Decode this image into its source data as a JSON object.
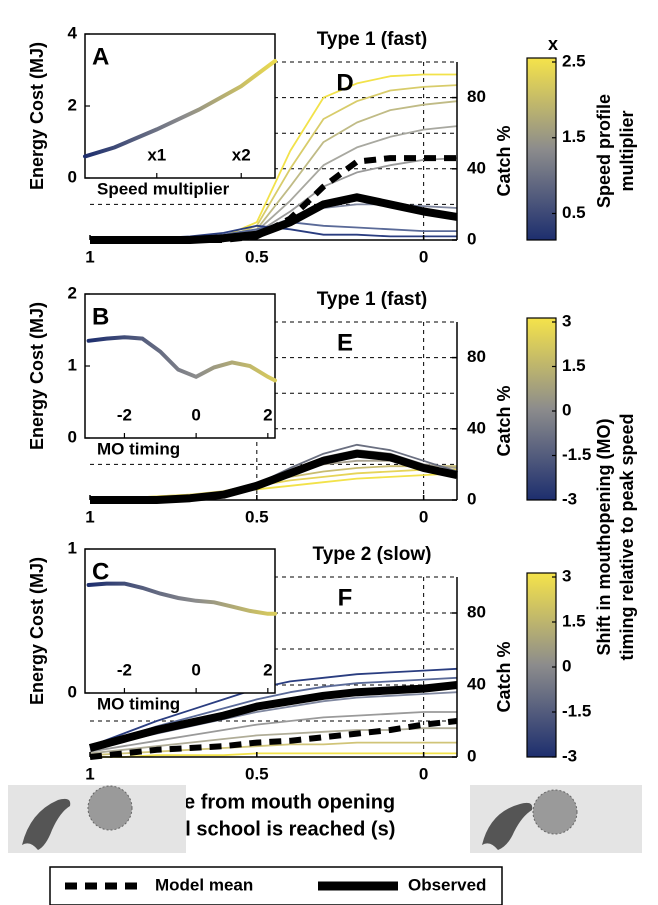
{
  "chart_data": [
    {
      "type": "line",
      "title": "Type 1 (fast)",
      "panel_label": "D",
      "ylabel": "Catch %",
      "x": [
        1,
        0.9,
        0.8,
        0.7,
        0.6,
        0.5,
        0.4,
        0.3,
        0.2,
        0.1,
        0,
        -0.1
      ],
      "xlim": [
        1,
        -0.1
      ],
      "xticks": [
        1,
        0.5,
        0
      ],
      "xgrid": [
        0
      ],
      "ylim": [
        0,
        100
      ],
      "yticks": [
        0,
        40,
        80
      ],
      "ygrid": [
        20,
        40,
        60,
        80,
        100
      ],
      "series": [
        {
          "color": "#f2e24a",
          "values": [
            0,
            0,
            0,
            0,
            2,
            10,
            50,
            80,
            88,
            92,
            93,
            93
          ]
        },
        {
          "color": "#d8cc6a",
          "values": [
            0,
            0,
            0,
            0,
            1,
            8,
            40,
            68,
            78,
            84,
            86,
            87
          ]
        },
        {
          "color": "#c0bb86",
          "values": [
            0,
            0,
            0,
            0,
            1,
            6,
            30,
            55,
            66,
            73,
            76,
            78
          ]
        },
        {
          "color": "#a8a8a0",
          "values": [
            0,
            0,
            0,
            0,
            1,
            5,
            22,
            42,
            52,
            58,
            62,
            64
          ]
        },
        {
          "color": "#9a9a9a",
          "values": [
            0,
            0,
            0,
            0,
            1,
            4,
            16,
            30,
            38,
            42,
            45,
            46
          ]
        },
        {
          "color": "#8088a0",
          "values": [
            0,
            0,
            0,
            1,
            2,
            5,
            12,
            18,
            20,
            20,
            19,
            18
          ]
        },
        {
          "color": "#5a6a98",
          "values": [
            0,
            0,
            0,
            1,
            3,
            6,
            10,
            8,
            7,
            6,
            5,
            5
          ]
        },
        {
          "color": "#2a3d80",
          "values": [
            0,
            0,
            1,
            2,
            4,
            8,
            6,
            3,
            3,
            2,
            2,
            2
          ]
        },
        {
          "color": "#000000",
          "width": 8,
          "values": [
            0,
            0,
            0,
            0,
            1,
            3,
            10,
            20,
            24,
            20,
            16,
            13
          ]
        },
        {
          "color": "#000000",
          "width": 6,
          "dash": true,
          "values": [
            0,
            0,
            0,
            0,
            0,
            2,
            12,
            30,
            44,
            46,
            46,
            46
          ]
        }
      ],
      "inset": {
        "panel_label": "A",
        "xlabel": "Speed multiplier",
        "ylabel": "Energy Cost (MJ)",
        "x": [
          0.15,
          0.5,
          1,
          1.5,
          2,
          2.4
        ],
        "values": [
          0.6,
          0.85,
          1.35,
          1.9,
          2.55,
          3.25
        ],
        "xlim": [
          0.15,
          2.4
        ],
        "xticks": [
          {
            "value": 1,
            "label": "x1"
          },
          {
            "value": 2,
            "label": "x2"
          }
        ],
        "ylim": [
          0,
          4
        ],
        "yticks": [
          0,
          2,
          4
        ]
      },
      "colorbar": {
        "title": "x",
        "label": [
          "Speed profile",
          "multiplier"
        ],
        "clim": [
          0.15,
          2.5
        ],
        "ticks": [
          0.5,
          1.5,
          2.5
        ],
        "colormap": [
          "#1d2e6e",
          "#8c8c8c",
          "#f5e34a"
        ]
      }
    },
    {
      "type": "line",
      "title": "Type 1 (fast)",
      "panel_label": "E",
      "ylabel": "Catch %",
      "x": [
        1,
        0.9,
        0.8,
        0.7,
        0.6,
        0.5,
        0.4,
        0.3,
        0.2,
        0.1,
        0,
        -0.1
      ],
      "xlim": [
        1,
        -0.1
      ],
      "xticks": [
        1,
        0.5,
        0
      ],
      "xgrid": [
        0.5,
        0
      ],
      "ylim": [
        0,
        100
      ],
      "yticks": [
        0,
        40,
        80
      ],
      "ygrid": [
        20,
        40,
        60,
        80,
        100
      ],
      "series": [
        {
          "color": "#f2e24a",
          "values": [
            0,
            1,
            2,
            3,
            4,
            6,
            8,
            10,
            12,
            13,
            14,
            15
          ]
        },
        {
          "color": "#e6d458",
          "values": [
            0,
            1,
            2,
            3,
            5,
            8,
            11,
            13,
            15,
            16,
            17,
            17
          ]
        },
        {
          "color": "#c8bc70",
          "values": [
            0,
            0,
            1,
            2,
            5,
            9,
            13,
            16,
            18,
            19,
            19,
            19
          ]
        },
        {
          "color": "#a8a290",
          "values": [
            0,
            0,
            1,
            2,
            4,
            9,
            15,
            20,
            22,
            22,
            20,
            18
          ]
        },
        {
          "color": "#8a8a8a",
          "values": [
            0,
            0,
            0,
            1,
            3,
            8,
            16,
            24,
            28,
            26,
            20,
            15
          ]
        },
        {
          "color": "#6a6f80",
          "values": [
            0,
            0,
            0,
            1,
            3,
            9,
            18,
            26,
            31,
            28,
            22,
            16
          ]
        },
        {
          "color": "#000000",
          "width": 8,
          "values": [
            0,
            0,
            0,
            1,
            3,
            8,
            15,
            22,
            26,
            24,
            18,
            14
          ]
        }
      ],
      "inset": {
        "panel_label": "B",
        "xlabel": "MO timing",
        "ylabel": "Energy Cost (MJ)",
        "x": [
          -3,
          -2.5,
          -2,
          -1.5,
          -1,
          -0.5,
          0,
          0.5,
          1,
          1.5,
          2,
          2.2
        ],
        "values": [
          1.35,
          1.38,
          1.4,
          1.38,
          1.2,
          0.95,
          0.85,
          0.98,
          1.05,
          1.0,
          0.85,
          0.8
        ],
        "xlim": [
          -3.1,
          2.2
        ],
        "xticks": [
          -2,
          0,
          2
        ],
        "ylim": [
          0,
          2
        ],
        "yticks": [
          0,
          1,
          2
        ]
      },
      "colorbar": {
        "label": [
          "Shift in mouthopening (MO)",
          "timing relative to peak speed"
        ],
        "clim": [
          -3,
          3
        ],
        "ticks": [
          -3,
          -1.5,
          0,
          1.5,
          3
        ],
        "colormap": [
          "#1d2e6e",
          "#8c8c8c",
          "#f5e34a"
        ]
      }
    },
    {
      "type": "line",
      "title": "Type 2 (slow)",
      "panel_label": "F",
      "ylabel": "Catch %",
      "xlabel": [
        "Time from mouth opening",
        "until school is reached (s)"
      ],
      "x": [
        1,
        0.9,
        0.8,
        0.7,
        0.6,
        0.5,
        0.4,
        0.3,
        0.2,
        0.1,
        0,
        -0.1
      ],
      "xlim": [
        1,
        -0.1
      ],
      "xticks": [
        1,
        0.5,
        0
      ],
      "xgrid": [
        0
      ],
      "ylim": [
        0,
        100
      ],
      "yticks": [
        0,
        40,
        80
      ],
      "ygrid": [
        20,
        40,
        60,
        80,
        100
      ],
      "series": [
        {
          "color": "#f2e24a",
          "values": [
            0,
            0,
            1,
            1,
            1,
            2,
            2,
            2,
            2,
            2,
            2,
            2
          ]
        },
        {
          "color": "#d0c478",
          "values": [
            1,
            2,
            3,
            4,
            5,
            6,
            7,
            7,
            8,
            8,
            8,
            8
          ]
        },
        {
          "color": "#b0ad98",
          "values": [
            2,
            4,
            6,
            8,
            10,
            12,
            13,
            14,
            15,
            15,
            16,
            16
          ]
        },
        {
          "color": "#9a9a9a",
          "values": [
            3,
            6,
            9,
            12,
            15,
            18,
            20,
            22,
            23,
            24,
            25,
            25
          ]
        },
        {
          "color": "#8088a0",
          "values": [
            4,
            9,
            13,
            17,
            21,
            25,
            28,
            31,
            33,
            34,
            35,
            36
          ]
        },
        {
          "color": "#5a6a98",
          "values": [
            5,
            11,
            17,
            22,
            27,
            32,
            36,
            39,
            41,
            42,
            43,
            44
          ]
        },
        {
          "color": "#2a3d80",
          "values": [
            6,
            13,
            20,
            26,
            32,
            38,
            42,
            44,
            46,
            47,
            48,
            49
          ]
        },
        {
          "color": "#000000",
          "width": 8,
          "values": [
            5,
            10,
            15,
            19,
            23,
            28,
            31,
            34,
            36,
            37,
            38,
            40
          ]
        },
        {
          "color": "#000000",
          "width": 6,
          "dash": true,
          "values": [
            0,
            2,
            4,
            5,
            6,
            8,
            9,
            11,
            13,
            15,
            18,
            20
          ]
        }
      ],
      "inset": {
        "panel_label": "C",
        "xlabel": "MO timing",
        "ylabel": "Energy Cost (MJ)",
        "x": [
          -3,
          -2.5,
          -2,
          -1.5,
          -1,
          -0.5,
          0,
          0.5,
          1,
          1.5,
          2,
          2.2
        ],
        "values": [
          0.75,
          0.76,
          0.76,
          0.73,
          0.69,
          0.66,
          0.64,
          0.63,
          0.6,
          0.57,
          0.55,
          0.55
        ],
        "xlim": [
          -3.1,
          2.2
        ],
        "xticks": [
          -2,
          0,
          2
        ],
        "ylim": [
          0,
          1
        ],
        "yticks": [
          0,
          1
        ]
      },
      "colorbar": {
        "clim": [
          -3,
          3
        ],
        "ticks": [
          -3,
          -1.5,
          0,
          1.5,
          3
        ],
        "colormap": [
          "#1d2e6e",
          "#8c8c8c",
          "#f5e34a"
        ]
      }
    }
  ],
  "legend": [
    {
      "name": "Model mean",
      "dash": true
    },
    {
      "name": "Observed",
      "dash": false
    }
  ]
}
